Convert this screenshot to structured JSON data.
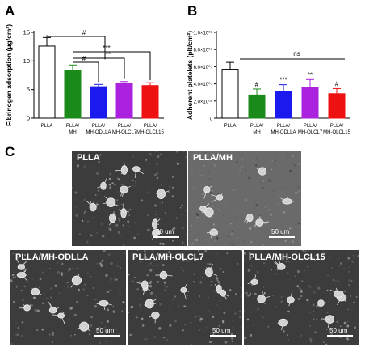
{
  "panels": {
    "a": "A",
    "b": "B",
    "c": "C"
  },
  "chart_data": [
    {
      "type": "bar",
      "panel": "A",
      "ylabel": "Fibrinogen adsorption (μg/cm²)",
      "ylim": [
        0,
        15
      ],
      "yticks": [
        "0",
        "5",
        "10",
        "15"
      ],
      "categories": [
        [
          "PLLA"
        ],
        [
          "PLLA/",
          "MH"
        ],
        [
          "PLLA/",
          "MH-ODLLA"
        ],
        [
          "PLLA/",
          "MH-OLCL7"
        ],
        [
          "PLLA/",
          "MH-OLCL15"
        ]
      ],
      "values": [
        12.6,
        8.3,
        5.5,
        6.1,
        5.7
      ],
      "errors": [
        1.5,
        1.0,
        0.4,
        0.3,
        0.5
      ],
      "colors": [
        "#ffffff",
        "#1a8a1a",
        "#1a1aee",
        "#aa22dd",
        "#ee1111"
      ],
      "significance": [
        {
          "from": 0,
          "to": 1,
          "label": "#"
        },
        {
          "from": 1,
          "to": 2,
          "label": "#"
        },
        {
          "from": 1,
          "to": 3,
          "label": "**"
        },
        {
          "from": 1,
          "to": 4,
          "label": "***"
        }
      ]
    },
    {
      "type": "bar",
      "panel": "B",
      "ylabel": "Adherent platelets (plt/cm²)",
      "ylim": [
        0,
        1000000
      ],
      "yticks": [
        "0",
        "2.0×10⁰⁵",
        "4.0×10⁰⁵",
        "6.0×10⁰⁵",
        "8.0×10⁰⁵",
        "1.0×10⁰⁶"
      ],
      "categories": [
        [
          "PLLA"
        ],
        [
          "PLLA/",
          "MH"
        ],
        [
          "PLLA/",
          "MH-ODLLA"
        ],
        [
          "PLLA/",
          "MH-OLCL7"
        ],
        [
          "PLLA/",
          "MH-OLCL15"
        ]
      ],
      "values": [
        570000,
        270000,
        310000,
        360000,
        285000
      ],
      "errors": [
        80000,
        70000,
        80000,
        90000,
        60000
      ],
      "colors": [
        "#ffffff",
        "#1a8a1a",
        "#1a1aee",
        "#aa22dd",
        "#ee1111"
      ],
      "bar_labels": [
        "",
        "#",
        "***",
        "**",
        "#"
      ],
      "ns_bracket": {
        "from": 1,
        "to": 4,
        "label": "ns"
      }
    }
  ],
  "sem_images": [
    {
      "label": "PLLA",
      "scale": "50 um"
    },
    {
      "label": "PLLA/MH",
      "scale": "50 um"
    },
    {
      "label": "PLLA/MH-ODLLA",
      "scale": "50 um"
    },
    {
      "label": "PLLA/MH-OLCL7",
      "scale": "50 um"
    },
    {
      "label": "PLLA/MH-OLCL15",
      "scale": "50 um"
    }
  ]
}
